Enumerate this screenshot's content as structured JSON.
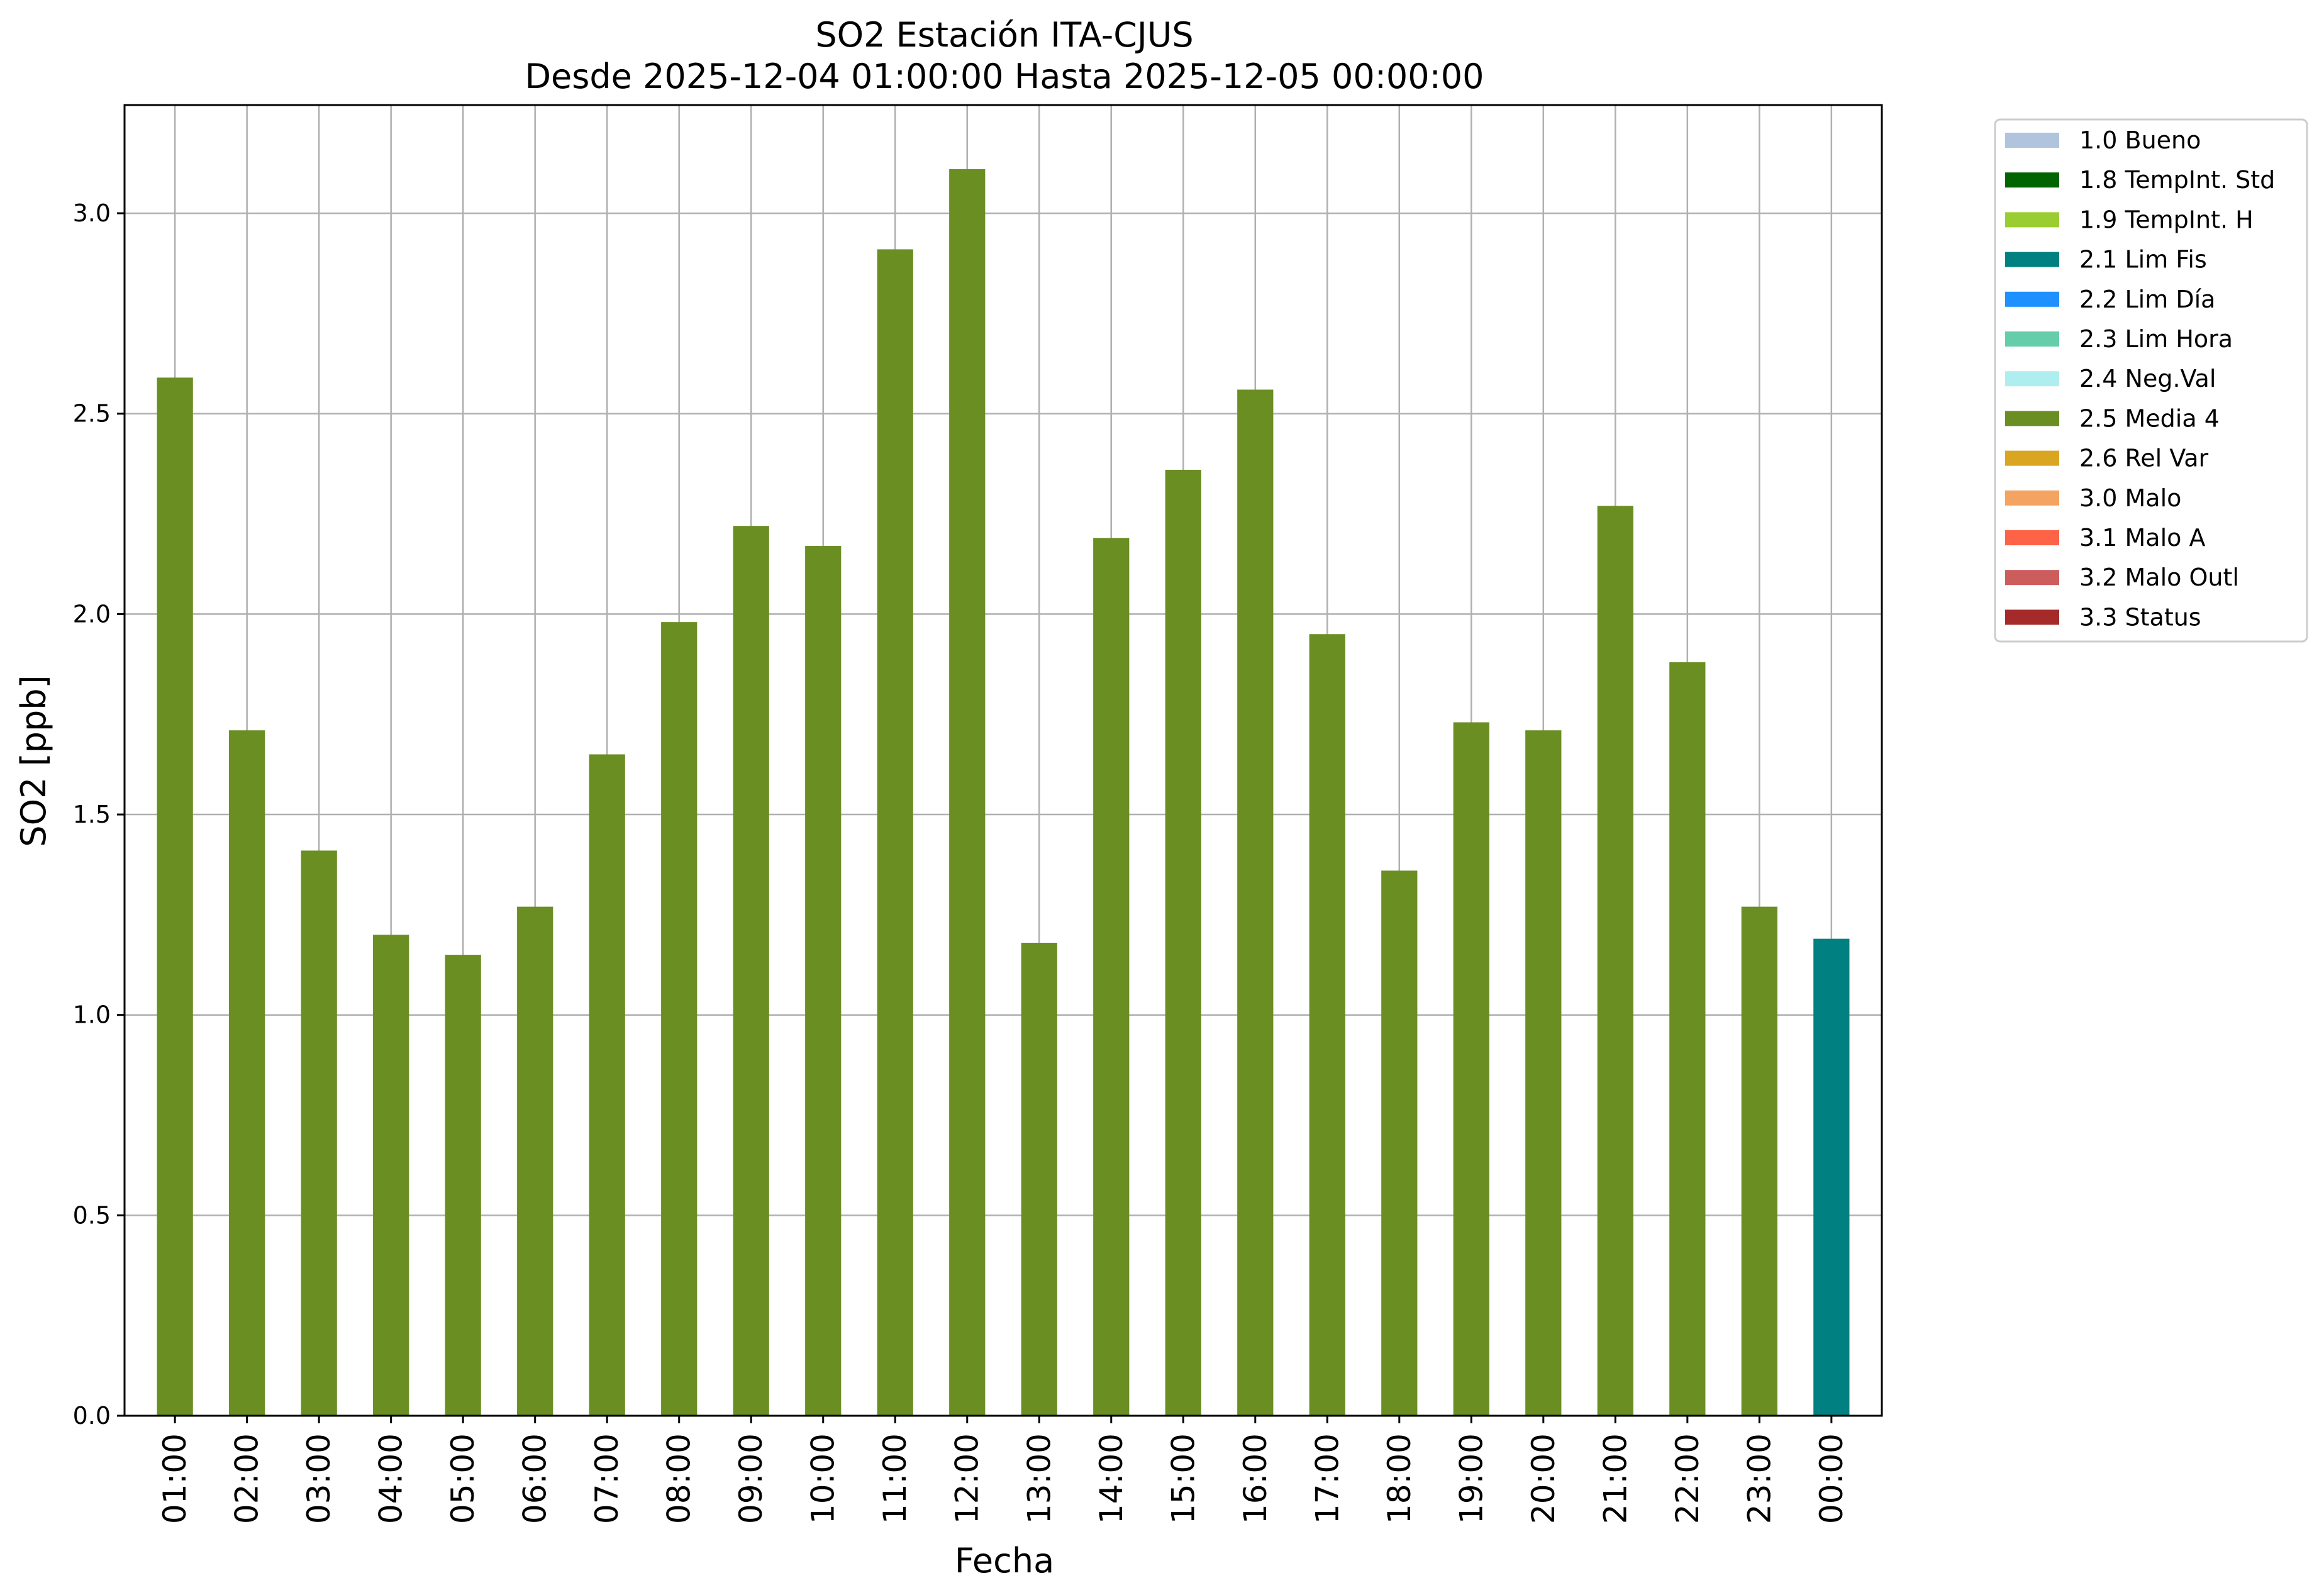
{
  "chart_data": {
    "type": "bar",
    "title_line1": "SO2 Estación ITA-CJUS",
    "title_line2": "Desde 2025-12-04 01:00:00 Hasta 2025-12-05 00:00:00",
    "xlabel": "Fecha",
    "ylabel": "SO2 [ppb]",
    "ylim": [
      0,
      3.27
    ],
    "yticks": [
      "0.0",
      "0.5",
      "1.0",
      "1.5",
      "2.0",
      "2.5",
      "3.0"
    ],
    "ytick_values": [
      0,
      0.5,
      1.0,
      1.5,
      2.0,
      2.5,
      3.0
    ],
    "grid": true,
    "legend_position": "outside-right-top",
    "categories": [
      "01:00",
      "02:00",
      "03:00",
      "04:00",
      "05:00",
      "06:00",
      "07:00",
      "08:00",
      "09:00",
      "10:00",
      "11:00",
      "12:00",
      "13:00",
      "14:00",
      "15:00",
      "16:00",
      "17:00",
      "18:00",
      "19:00",
      "20:00",
      "21:00",
      "22:00",
      "23:00",
      "00:00"
    ],
    "values": [
      2.59,
      1.71,
      1.41,
      1.2,
      1.15,
      1.27,
      1.65,
      1.98,
      2.22,
      2.17,
      2.91,
      3.11,
      1.18,
      2.19,
      2.36,
      2.56,
      1.95,
      1.36,
      1.73,
      1.71,
      2.27,
      1.88,
      1.27,
      1.19
    ],
    "bar_flags": [
      "2.5 Media 4",
      "2.5 Media 4",
      "2.5 Media 4",
      "2.5 Media 4",
      "2.5 Media 4",
      "2.5 Media 4",
      "2.5 Media 4",
      "2.5 Media 4",
      "2.5 Media 4",
      "2.5 Media 4",
      "2.5 Media 4",
      "2.5 Media 4",
      "2.5 Media 4",
      "2.5 Media 4",
      "2.5 Media 4",
      "2.5 Media 4",
      "2.5 Media 4",
      "2.5 Media 4",
      "2.5 Media 4",
      "2.5 Media 4",
      "2.5 Media 4",
      "2.5 Media 4",
      "2.5 Media 4",
      "2.1 Lim Fis"
    ],
    "legend": [
      {
        "label": "1.0 Bueno",
        "color": "#b0c4de"
      },
      {
        "label": "1.8 TempInt. Std",
        "color": "#006400"
      },
      {
        "label": "1.9 TempInt. H",
        "color": "#9acd32"
      },
      {
        "label": "2.1 Lim Fis",
        "color": "#008080"
      },
      {
        "label": "2.2 Lim Día",
        "color": "#1e90ff"
      },
      {
        "label": "2.3 Lim Hora",
        "color": "#66cdaa"
      },
      {
        "label": "2.4 Neg.Val",
        "color": "#afeeee"
      },
      {
        "label": "2.5 Media 4",
        "color": "#6b8e23"
      },
      {
        "label": "2.6 Rel Var",
        "color": "#daa520"
      },
      {
        "label": "3.0 Malo",
        "color": "#f4a460"
      },
      {
        "label": "3.1 Malo A",
        "color": "#ff6347"
      },
      {
        "label": "3.2 Malo Outl",
        "color": "#cd5c5c"
      },
      {
        "label": "3.3 Status",
        "color": "#a52a2a"
      }
    ]
  }
}
